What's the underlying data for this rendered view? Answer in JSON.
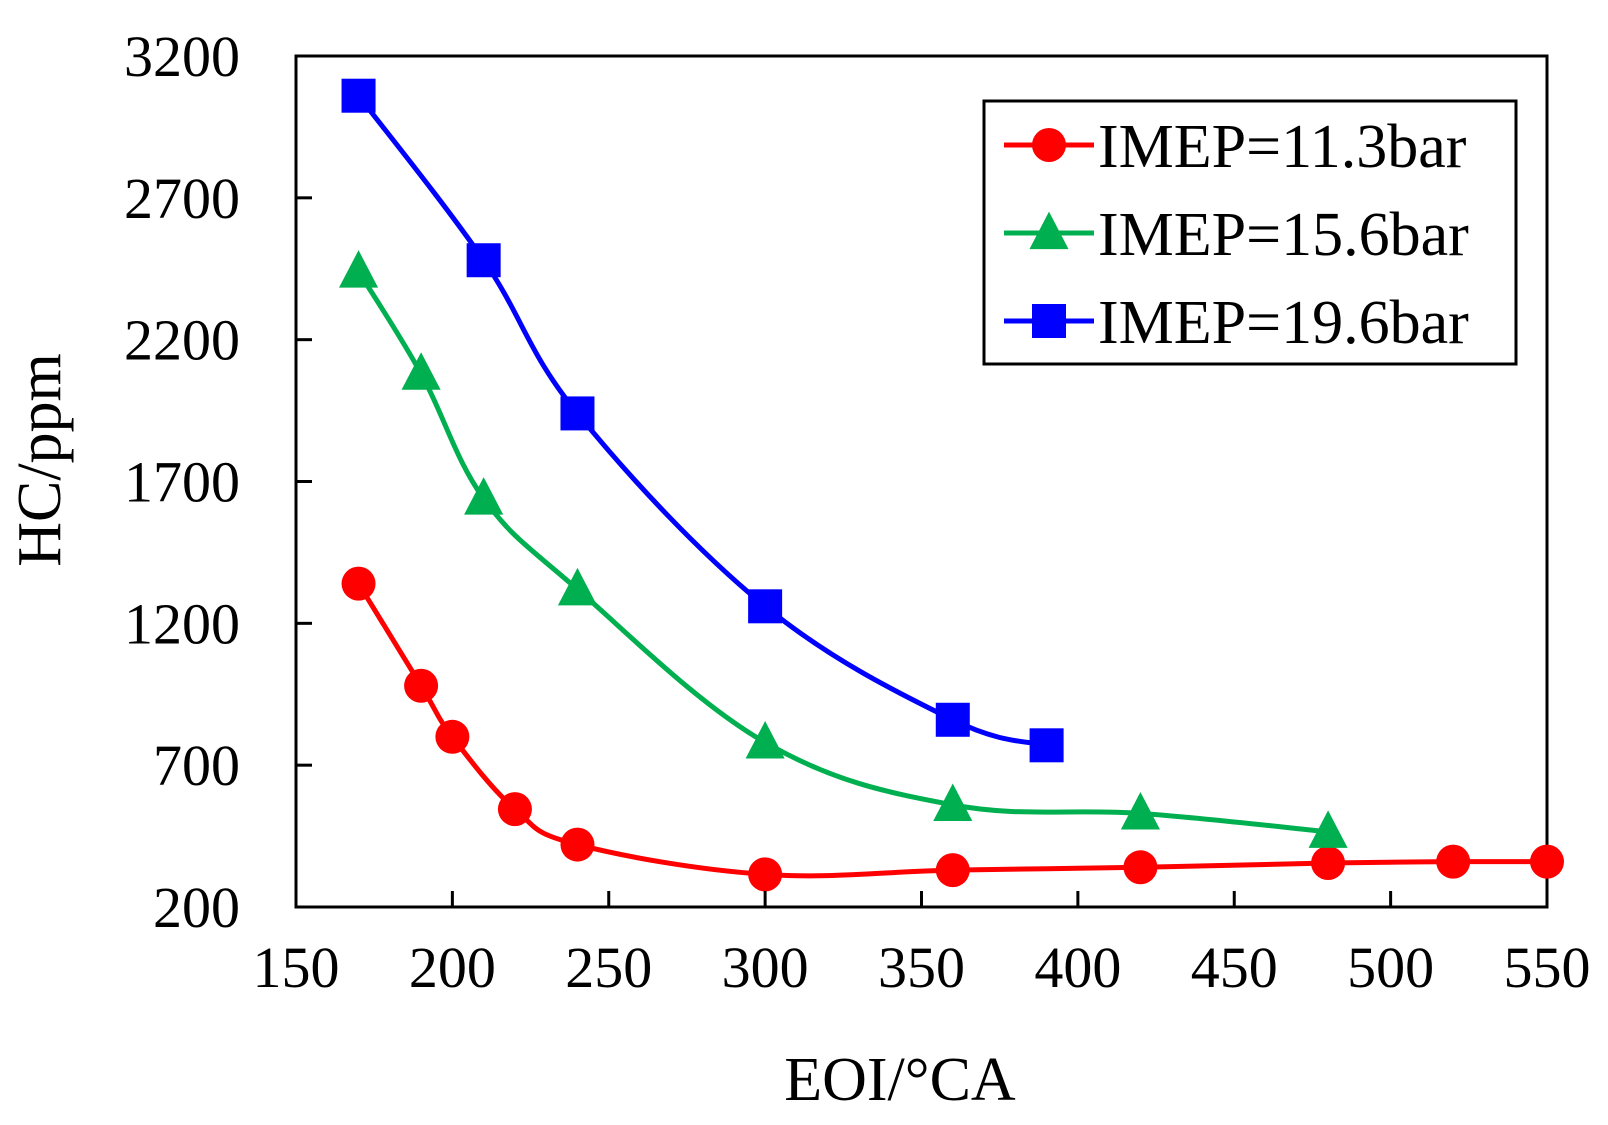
{
  "chart_data": {
    "type": "line",
    "title": "",
    "xlabel": "EOI/°CA",
    "ylabel": "HC/ppm",
    "xlim": [
      150,
      550
    ],
    "ylim": [
      200,
      3200
    ],
    "xticks": [
      150,
      200,
      250,
      300,
      350,
      400,
      450,
      500,
      550
    ],
    "yticks": [
      200,
      700,
      1200,
      1700,
      2200,
      2700,
      3200
    ],
    "xtick_labels": [
      "150",
      "200",
      "250",
      "300",
      "350",
      "400",
      "450",
      "500",
      "550"
    ],
    "ytick_labels": [
      "200",
      "700",
      "1200",
      "1700",
      "2200",
      "2700",
      "3200"
    ],
    "legend_position": "top-right",
    "grid": false,
    "series": [
      {
        "name": "IMEP=11.3bar",
        "color": "#ff0000",
        "marker": "circle",
        "x": [
          170,
          190,
          200,
          220,
          240,
          300,
          360,
          420,
          480,
          520,
          550
        ],
        "y": [
          1340,
          980,
          800,
          545,
          420,
          315,
          330,
          340,
          355,
          360,
          360
        ]
      },
      {
        "name": "IMEP=15.6bar",
        "color": "#00b050",
        "marker": "triangle",
        "x": [
          170,
          190,
          210,
          240,
          300,
          360,
          420,
          480
        ],
        "y": [
          2440,
          2080,
          1640,
          1320,
          780,
          560,
          530,
          465
        ]
      },
      {
        "name": "IMEP=19.6bar",
        "color": "#0000ff",
        "marker": "square",
        "x": [
          170,
          210,
          240,
          300,
          360,
          390
        ],
        "y": [
          3060,
          2480,
          1940,
          1260,
          860,
          770
        ]
      }
    ]
  }
}
